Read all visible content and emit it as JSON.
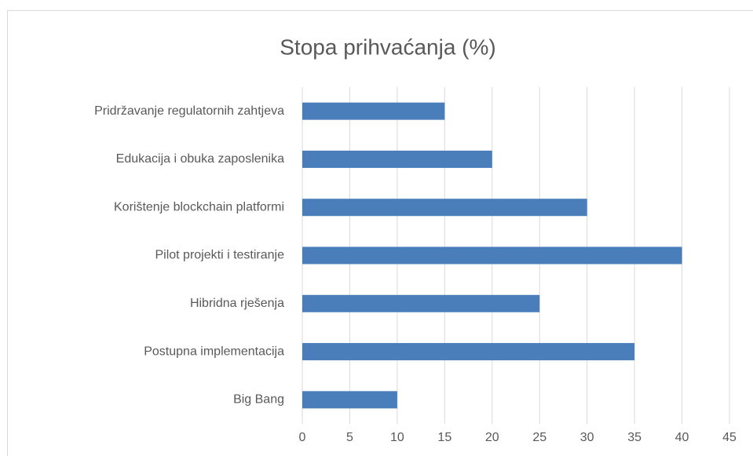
{
  "chart_data": {
    "type": "bar",
    "orientation": "horizontal",
    "title": "Stopa prihvaćanja (%)",
    "categories": [
      "Pridržavanje regulatornih zahtjeva",
      "Edukacija i obuka zaposlenika",
      "Korištenje blockchain platformi",
      "Pilot projekti i testiranje",
      "Hibridna rješenja",
      "Postupna implementacija",
      "Big Bang"
    ],
    "values": [
      15,
      20,
      30,
      40,
      25,
      35,
      10
    ],
    "color": "#4a7ebb",
    "xlim": [
      0,
      45
    ],
    "xticks": [
      0,
      5,
      10,
      15,
      20,
      25,
      30,
      35,
      40,
      45
    ],
    "grid": true
  }
}
